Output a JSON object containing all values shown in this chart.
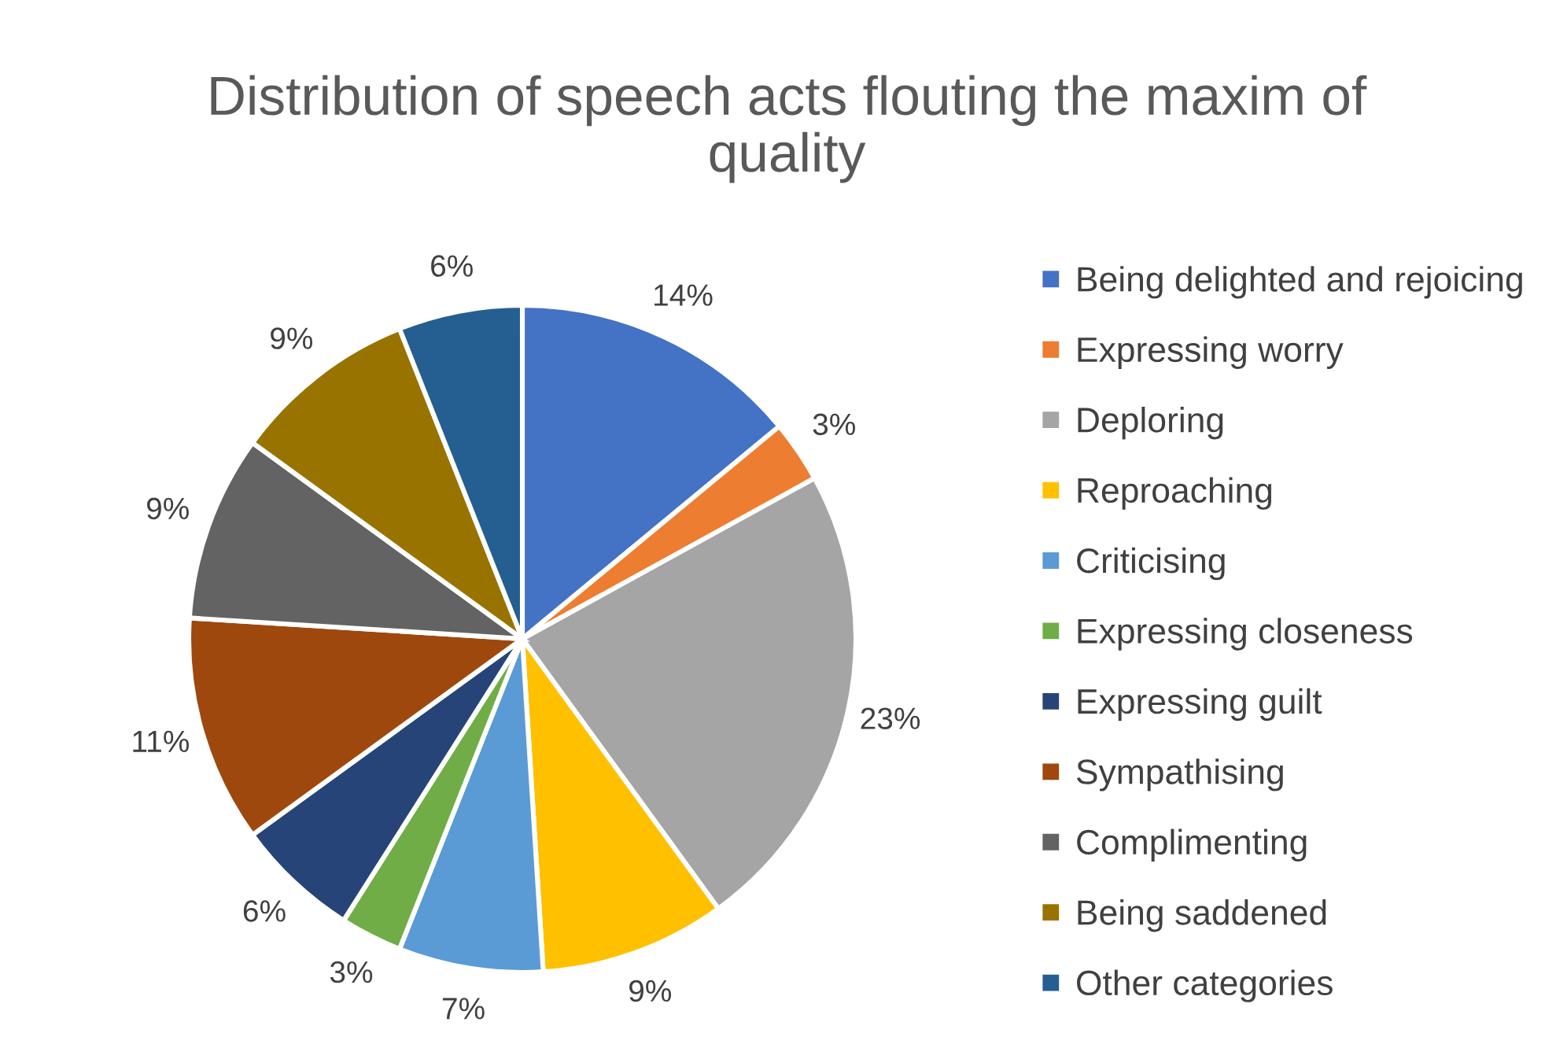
{
  "chart_data": {
    "type": "pie",
    "title": "Distribution of speech acts flouting the maxim of\nquality",
    "categories": [
      "Being delighted and rejoicing",
      "Expressing worry",
      "Deploring",
      "Reproaching",
      "Criticising",
      "Expressing closeness",
      "Expressing guilt",
      "Sympathising",
      "Complimenting",
      "Being saddened",
      "Other categories"
    ],
    "values": [
      14,
      3,
      23,
      9,
      7,
      3,
      6,
      11,
      9,
      9,
      6
    ],
    "colors": [
      "#4472c4",
      "#ed7d31",
      "#a5a5a5",
      "#ffc000",
      "#5b9bd5",
      "#70ad47",
      "#264478",
      "#9e480e",
      "#636363",
      "#997300",
      "#255e91"
    ],
    "value_labels": [
      "14%",
      "3%",
      "23%",
      "9%",
      "7%",
      "3%",
      "6%",
      "11%",
      "9%",
      "9%",
      "6%"
    ],
    "legend": "right"
  }
}
